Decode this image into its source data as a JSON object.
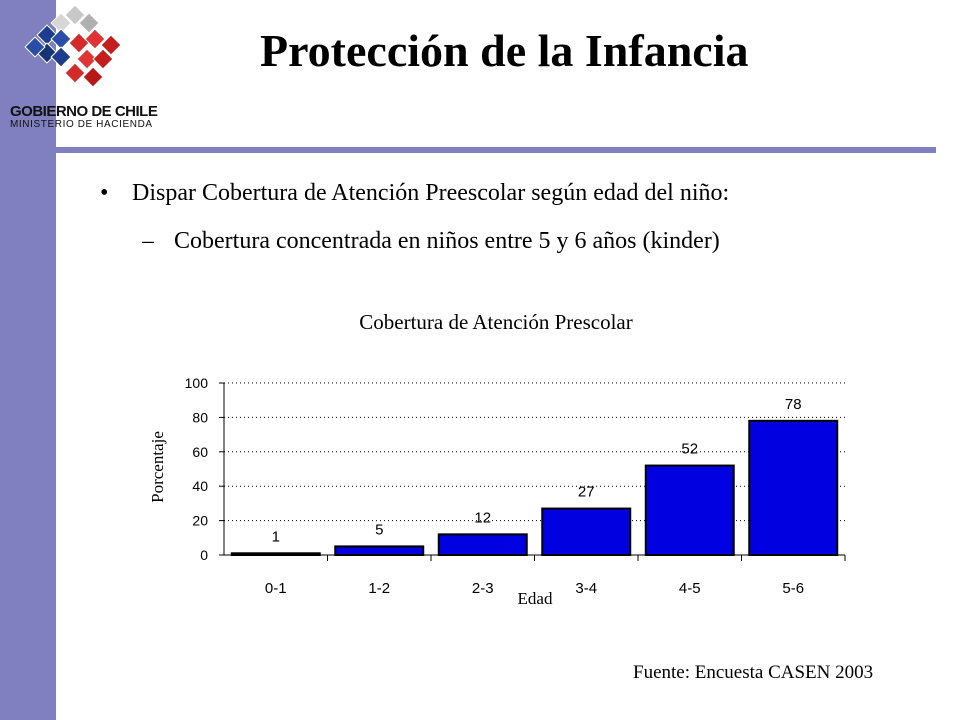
{
  "header": {
    "title": "Protección de la Infancia",
    "logo": {
      "icon": "chile-government-logo-icon",
      "line1": "GOBIERNO DE CHILE",
      "line2": "MINISTERIO DE HACIENDA"
    }
  },
  "content": {
    "bullet": "Dispar Cobertura de Atención Preescolar según edad del niño:",
    "sub_bullet": "Cobertura concentrada en niños entre 5 y 6 años (kinder)"
  },
  "chart_data": {
    "type": "bar",
    "title": "Cobertura de Atención Prescolar",
    "xlabel": "Edad",
    "ylabel": "Porcentaje",
    "categories": [
      "0-1",
      "1-2",
      "2-3",
      "3-4",
      "4-5",
      "5-6"
    ],
    "values": [
      1,
      5,
      12,
      27,
      52,
      78
    ],
    "data_labels": [
      "1",
      "5",
      "12",
      "27",
      "52",
      "78"
    ],
    "ylim": [
      0,
      100
    ],
    "yticks": [
      0,
      20,
      40,
      60,
      80,
      100
    ],
    "grid": true,
    "legend": "none",
    "bar_color": "#0000e0"
  },
  "footer": {
    "source": "Fuente: Encuesta CASEN 2003"
  },
  "colors": {
    "accent": "#8080c0",
    "bar": "#0000e0",
    "bar_border": "#000000"
  }
}
